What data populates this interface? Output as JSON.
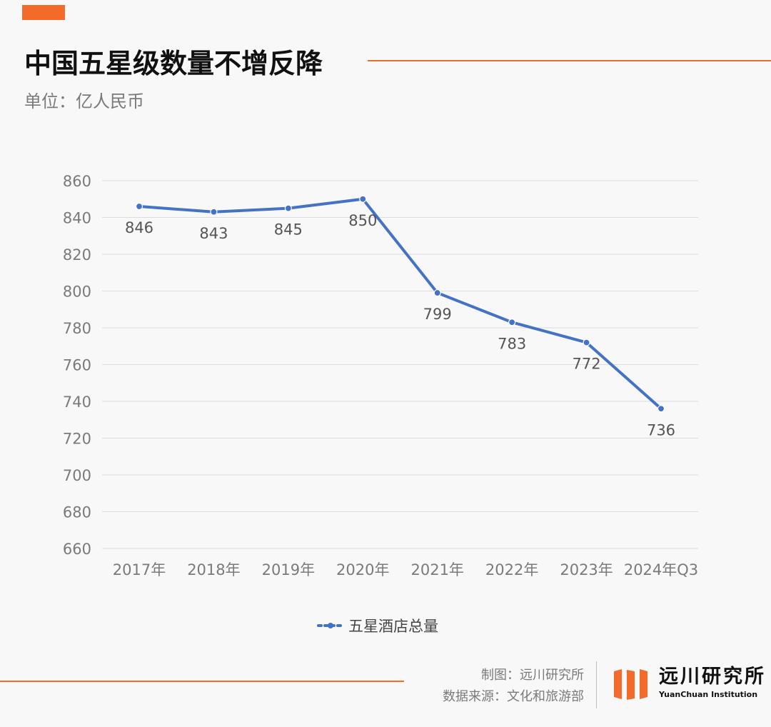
{
  "header": {
    "title": "中国五星级数量不增反降",
    "subtitle": "单位：亿人民币"
  },
  "colors": {
    "accent": "#f26b2a",
    "series": "#4472c4",
    "grid": "#dcdcdc",
    "tick_text": "#7a7a7a",
    "label_text": "#555555"
  },
  "chart_data": {
    "type": "line",
    "title": "中国五星级数量不增反降",
    "subtitle": "单位：亿人民币",
    "categories": [
      "2017年",
      "2018年",
      "2019年",
      "2020年",
      "2021年",
      "2022年",
      "2023年",
      "2024年Q3"
    ],
    "series": [
      {
        "name": "五星酒店总量",
        "values": [
          846,
          843,
          845,
          850,
          799,
          783,
          772,
          736
        ]
      }
    ],
    "ylim": [
      660,
      860
    ],
    "yticks": [
      660,
      680,
      700,
      720,
      740,
      760,
      780,
      800,
      820,
      840,
      860
    ],
    "grid": true,
    "legend": "bottom-center",
    "data_labels": true
  },
  "legend": {
    "label": "五星酒店总量"
  },
  "footer": {
    "credit_line1": "制图：远川研究所",
    "credit_line2": "数据来源：文化和旅游部",
    "logo_cn": "远川研究所",
    "logo_en": "YuanChuan Institution"
  }
}
